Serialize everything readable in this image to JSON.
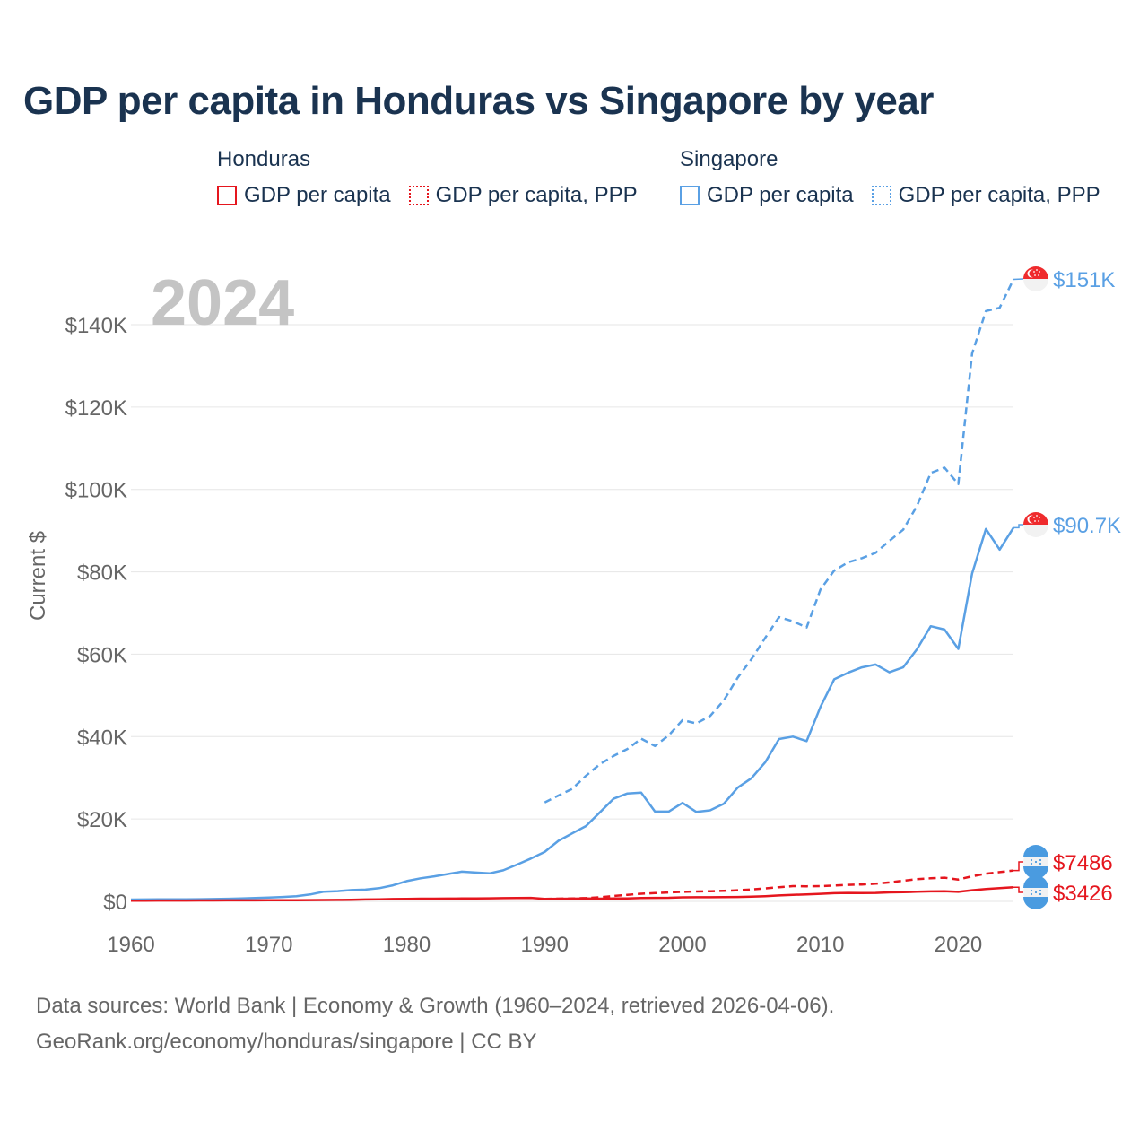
{
  "title": "GDP per capita in Honduras vs Singapore by year",
  "legend": {
    "groups": [
      {
        "country": "Honduras",
        "items": [
          "GDP per capita",
          "GDP per capita, PPP"
        ]
      },
      {
        "country": "Singapore",
        "items": [
          "GDP per capita",
          "GDP per capita, PPP"
        ]
      }
    ]
  },
  "footer": {
    "line1": "Data sources: World Bank | Economy & Growth (1960–2024, retrieved 2026-04-06).",
    "line2": "GeoRank.org/economy/honduras/singapore | CC BY"
  },
  "colors": {
    "honduras": "#e5161e",
    "singapore": "#5aa0e4"
  },
  "chart_data": {
    "type": "line",
    "year_label": "2024",
    "ylabel": "Current $",
    "xlim": [
      1960,
      2024
    ],
    "ylim": [
      0,
      150000
    ],
    "x_ticks": [
      1960,
      1970,
      1980,
      1990,
      2000,
      2010,
      2020
    ],
    "x_tick_labels": [
      "1960",
      "1970",
      "1980",
      "1990",
      "2000",
      "2010",
      "2020"
    ],
    "y_ticks": [
      0,
      20000,
      40000,
      60000,
      80000,
      100000,
      120000,
      140000
    ],
    "y_tick_labels": [
      "$0",
      "$20K",
      "$40K",
      "$60K",
      "$80K",
      "$100K",
      "$120K",
      "$140K"
    ],
    "series": [
      {
        "name": "Singapore GDP per capita, PPP",
        "country": "singapore",
        "style": "dashed",
        "end_label": "$151K",
        "x": [
          1990,
          1991,
          1992,
          1993,
          1994,
          1995,
          1996,
          1997,
          1998,
          1999,
          2000,
          2001,
          2002,
          2003,
          2004,
          2005,
          2006,
          2007,
          2008,
          2009,
          2010,
          2011,
          2012,
          2013,
          2014,
          2015,
          2016,
          2017,
          2018,
          2019,
          2020,
          2021,
          2022,
          2023,
          2024
        ],
        "values": [
          24000,
          25700,
          27300,
          30500,
          33300,
          35300,
          37000,
          39500,
          37700,
          40300,
          44000,
          43200,
          45000,
          48800,
          54300,
          58800,
          64000,
          69000,
          68000,
          66500,
          75700,
          80300,
          82300,
          83300,
          84600,
          87500,
          90200,
          96000,
          104000,
          105300,
          101300,
          133000,
          143300,
          144100,
          151000
        ]
      },
      {
        "name": "Singapore GDP per capita",
        "country": "singapore",
        "style": "solid",
        "end_label": "$90.7K",
        "x": [
          1960,
          1961,
          1962,
          1963,
          1964,
          1965,
          1966,
          1967,
          1968,
          1969,
          1970,
          1971,
          1972,
          1973,
          1974,
          1975,
          1976,
          1977,
          1978,
          1979,
          1980,
          1981,
          1982,
          1983,
          1984,
          1985,
          1986,
          1987,
          1988,
          1989,
          1990,
          1991,
          1992,
          1993,
          1994,
          1995,
          1996,
          1997,
          1998,
          1999,
          2000,
          2001,
          2002,
          2003,
          2004,
          2005,
          2006,
          2007,
          2008,
          2009,
          2010,
          2011,
          2012,
          2013,
          2014,
          2015,
          2016,
          2017,
          2018,
          2019,
          2020,
          2021,
          2022,
          2023,
          2024
        ],
        "values": [
          428,
          449,
          472,
          511,
          485,
          516,
          566,
          626,
          708,
          812,
          926,
          1070,
          1264,
          1685,
          2342,
          2490,
          2746,
          2846,
          3193,
          3900,
          4929,
          5597,
          6077,
          6633,
          7212,
          6994,
          6801,
          7538,
          8922,
          10381,
          12000,
          14700,
          16500,
          18300,
          21600,
          24900,
          26200,
          26400,
          21800,
          21800,
          23900,
          21700,
          22100,
          23700,
          27600,
          29900,
          33800,
          39400,
          40000,
          38900,
          47200,
          53900,
          55500,
          56800,
          57500,
          55600,
          56800,
          61200,
          66800,
          66000,
          61300,
          79600,
          90400,
          85400,
          90700
        ]
      },
      {
        "name": "Honduras GDP per capita, PPP",
        "country": "honduras",
        "style": "dashed",
        "end_label": "$7486",
        "x": [
          1990,
          1991,
          1992,
          1993,
          1994,
          1995,
          1996,
          1997,
          1998,
          1999,
          2000,
          2001,
          2002,
          2003,
          2004,
          2005,
          2006,
          2007,
          2008,
          2009,
          2010,
          2011,
          2012,
          2013,
          2014,
          2015,
          2016,
          2017,
          2018,
          2019,
          2020,
          2021,
          2022,
          2023,
          2024
        ],
        "values": [
          600,
          650,
          700,
          800,
          1000,
          1300,
          1600,
          1850,
          2000,
          2150,
          2300,
          2400,
          2450,
          2550,
          2700,
          2900,
          3150,
          3450,
          3700,
          3650,
          3700,
          3850,
          4000,
          4100,
          4300,
          4600,
          5000,
          5400,
          5600,
          5750,
          5300,
          6100,
          6700,
          7100,
          7486
        ]
      },
      {
        "name": "Honduras GDP per capita",
        "country": "honduras",
        "style": "solid",
        "end_label": "$3426",
        "x": [
          1960,
          1961,
          1962,
          1963,
          1964,
          1965,
          1966,
          1967,
          1968,
          1969,
          1970,
          1971,
          1972,
          1973,
          1974,
          1975,
          1976,
          1977,
          1978,
          1979,
          1980,
          1981,
          1982,
          1983,
          1984,
          1985,
          1986,
          1987,
          1988,
          1989,
          1990,
          1991,
          1992,
          1993,
          1994,
          1995,
          1996,
          1997,
          1998,
          1999,
          2000,
          2001,
          2002,
          2003,
          2004,
          2005,
          2006,
          2007,
          2008,
          2009,
          2010,
          2011,
          2012,
          2013,
          2014,
          2015,
          2016,
          2017,
          2018,
          2019,
          2020,
          2021,
          2022,
          2023,
          2024
        ],
        "values": [
          180,
          185,
          190,
          200,
          205,
          215,
          225,
          230,
          240,
          245,
          260,
          265,
          275,
          300,
          330,
          340,
          390,
          450,
          510,
          560,
          620,
          650,
          660,
          670,
          690,
          720,
          750,
          790,
          820,
          850,
          610,
          630,
          660,
          690,
          650,
          700,
          720,
          800,
          850,
          880,
          980,
          1010,
          1000,
          1020,
          1060,
          1140,
          1260,
          1430,
          1600,
          1680,
          1830,
          1990,
          2050,
          2000,
          2040,
          2180,
          2240,
          2330,
          2410,
          2470,
          2300,
          2700,
          3000,
          3200,
          3426
        ]
      }
    ]
  }
}
